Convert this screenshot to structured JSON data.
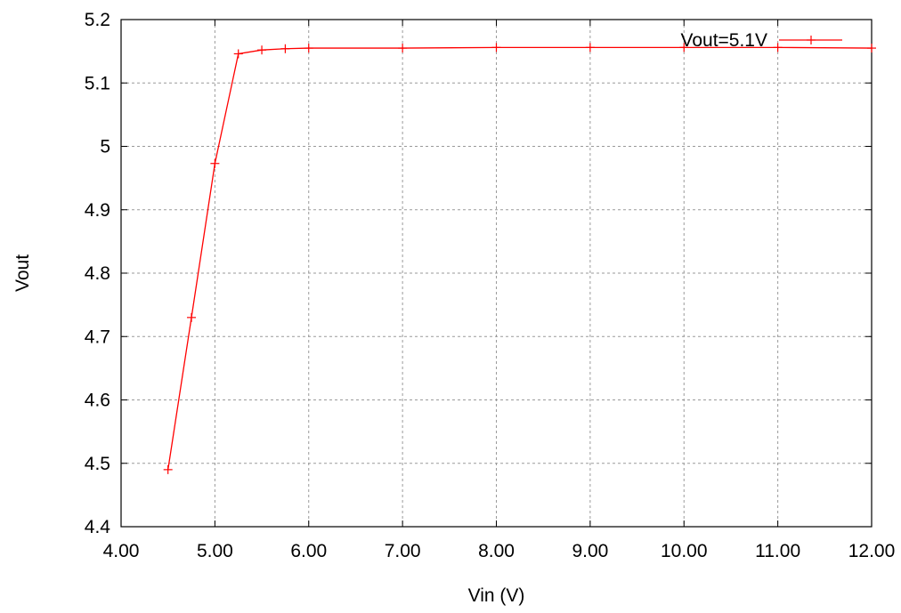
{
  "chart_data": {
    "type": "line",
    "title": "",
    "xlabel": "Vin (V)",
    "ylabel": "Vout",
    "xlim": [
      4.0,
      12.0
    ],
    "ylim": [
      4.4,
      5.2
    ],
    "xticks": [
      4,
      5,
      6,
      7,
      8,
      9,
      10,
      11,
      12
    ],
    "xtick_labels": [
      "4.00",
      "5.00",
      "6.00",
      "7.00",
      "8.00",
      "9.00",
      "10.00",
      "11.00",
      "12.00"
    ],
    "yticks": [
      4.4,
      4.5,
      4.6,
      4.7,
      4.8,
      4.9,
      5.0,
      5.1,
      5.2
    ],
    "ytick_labels": [
      "4.4",
      "4.5",
      "4.6",
      "4.7",
      "4.8",
      "4.9",
      "5",
      "5.1",
      "5.2"
    ],
    "grid": true,
    "legend_position": "top-right",
    "series": [
      {
        "name": "Vout=5.1V",
        "color": "#ff0000",
        "marker": "plus",
        "x": [
          4.5,
          4.75,
          5.0,
          5.25,
          5.5,
          5.75,
          6.0,
          7.0,
          8.0,
          9.0,
          10.0,
          11.0,
          12.0
        ],
        "y": [
          4.49,
          4.73,
          4.973,
          5.146,
          5.152,
          5.154,
          5.155,
          5.155,
          5.156,
          5.156,
          5.156,
          5.156,
          5.155
        ]
      }
    ]
  }
}
